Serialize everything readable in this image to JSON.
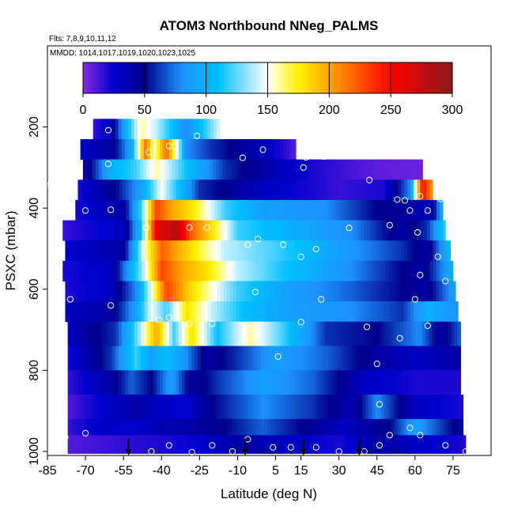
{
  "chart_data": {
    "type": "heatmap",
    "title": "ATOM3 Northbound NNeg_PALMS",
    "flights_note": "Flts: 7,8,9,10,11,12",
    "date_note": "MMDD: 1014,1017,1019,1020,1023,1025",
    "xlabel": "Latitude (deg N)",
    "ylabel": "PSXC (mbar)",
    "xlim": [
      -85,
      90
    ],
    "ylim": [
      1010,
      0
    ],
    "x_ticks": [
      -85,
      -70,
      -55,
      -40,
      -25,
      -10,
      5,
      15,
      30,
      45,
      60,
      75
    ],
    "y_ticks": [
      200,
      400,
      600,
      800,
      1000
    ],
    "colorbar": {
      "range": [
        0,
        300
      ],
      "ticks": [
        0,
        50,
        100,
        150,
        200,
        250,
        300
      ],
      "stops": [
        {
          "v": 0,
          "c": "#8a2be2"
        },
        {
          "v": 25,
          "c": "#0000cd"
        },
        {
          "v": 50,
          "c": "#00008b"
        },
        {
          "v": 80,
          "c": "#1e90ff"
        },
        {
          "v": 110,
          "c": "#00bfff"
        },
        {
          "v": 150,
          "c": "#ffffff"
        },
        {
          "v": 175,
          "c": "#fff200"
        },
        {
          "v": 200,
          "c": "#ffa500"
        },
        {
          "v": 250,
          "c": "#ff0000"
        },
        {
          "v": 300,
          "c": "#8b1a1a"
        }
      ]
    },
    "pressure_bands": [
      {
        "p_top": 180,
        "p_bot": 230,
        "lat_min": -67,
        "lat_max": -16,
        "knots": [
          [
            -67,
            15
          ],
          [
            -60,
            30
          ],
          [
            -55,
            90
          ],
          [
            -48,
            160
          ],
          [
            -42,
            140
          ],
          [
            -30,
            80
          ],
          [
            -16,
            150
          ]
        ]
      },
      {
        "p_top": 230,
        "p_bot": 280,
        "lat_min": -72,
        "lat_max": 13,
        "knots": [
          [
            -72,
            30
          ],
          [
            -60,
            40
          ],
          [
            -52,
            90
          ],
          [
            -46,
            220
          ],
          [
            -43,
            150
          ],
          [
            -38,
            220
          ],
          [
            -30,
            80
          ],
          [
            -20,
            60
          ],
          [
            -5,
            40
          ],
          [
            13,
            10
          ]
        ]
      },
      {
        "p_top": 280,
        "p_bot": 330,
        "lat_min": -71,
        "lat_max": 63,
        "knots": [
          [
            -71,
            30
          ],
          [
            -60,
            100
          ],
          [
            -50,
            120
          ],
          [
            -42,
            160
          ],
          [
            -30,
            110
          ],
          [
            -15,
            60
          ],
          [
            0,
            40
          ],
          [
            20,
            20
          ],
          [
            40,
            10
          ],
          [
            63,
            5
          ]
        ]
      },
      {
        "p_top": 330,
        "p_bot": 380,
        "lat_min": -73,
        "lat_max": 67,
        "knots": [
          [
            -73,
            20
          ],
          [
            -58,
            50
          ],
          [
            -48,
            90
          ],
          [
            -40,
            150
          ],
          [
            -25,
            60
          ],
          [
            0,
            30
          ],
          [
            30,
            15
          ],
          [
            48,
            20
          ],
          [
            58,
            80
          ],
          [
            63,
            250
          ],
          [
            67,
            200
          ]
        ]
      },
      {
        "p_top": 380,
        "p_bot": 430,
        "lat_min": -74,
        "lat_max": 71,
        "knots": [
          [
            -74,
            20
          ],
          [
            -55,
            40
          ],
          [
            -48,
            120
          ],
          [
            -42,
            230
          ],
          [
            -36,
            200
          ],
          [
            -28,
            180
          ],
          [
            -15,
            120
          ],
          [
            0,
            90
          ],
          [
            25,
            80
          ],
          [
            45,
            50
          ],
          [
            60,
            40
          ],
          [
            66,
            30
          ],
          [
            71,
            100
          ]
        ]
      },
      {
        "p_top": 430,
        "p_bot": 480,
        "lat_min": -79,
        "lat_max": 72,
        "knots": [
          [
            -79,
            15
          ],
          [
            -55,
            30
          ],
          [
            -48,
            110
          ],
          [
            -42,
            260
          ],
          [
            -34,
            280
          ],
          [
            -28,
            220
          ],
          [
            -20,
            180
          ],
          [
            -10,
            120
          ],
          [
            10,
            100
          ],
          [
            35,
            80
          ],
          [
            55,
            40
          ],
          [
            65,
            60
          ],
          [
            72,
            120
          ]
        ]
      },
      {
        "p_top": 480,
        "p_bot": 530,
        "lat_min": -78,
        "lat_max": 74,
        "knots": [
          [
            -78,
            25
          ],
          [
            -55,
            40
          ],
          [
            -47,
            150
          ],
          [
            -40,
            220
          ],
          [
            -34,
            200
          ],
          [
            -25,
            170
          ],
          [
            -15,
            140
          ],
          [
            5,
            120
          ],
          [
            30,
            90
          ],
          [
            55,
            60
          ],
          [
            65,
            40
          ],
          [
            74,
            110
          ]
        ]
      },
      {
        "p_top": 530,
        "p_bot": 580,
        "lat_min": -79,
        "lat_max": 75,
        "knots": [
          [
            -79,
            20
          ],
          [
            -60,
            30
          ],
          [
            -47,
            140
          ],
          [
            -40,
            230
          ],
          [
            -32,
            200
          ],
          [
            -22,
            180
          ],
          [
            -10,
            140
          ],
          [
            10,
            110
          ],
          [
            35,
            80
          ],
          [
            55,
            50
          ],
          [
            63,
            40
          ],
          [
            75,
            100
          ]
        ]
      },
      {
        "p_top": 580,
        "p_bot": 630,
        "lat_min": -78,
        "lat_max": 76,
        "knots": [
          [
            -78,
            20
          ],
          [
            -60,
            30
          ],
          [
            -50,
            80
          ],
          [
            -44,
            150
          ],
          [
            -38,
            230
          ],
          [
            -30,
            190
          ],
          [
            -22,
            160
          ],
          [
            -10,
            120
          ],
          [
            10,
            90
          ],
          [
            35,
            70
          ],
          [
            55,
            50
          ],
          [
            64,
            40
          ],
          [
            76,
            90
          ]
        ]
      },
      {
        "p_top": 630,
        "p_bot": 680,
        "lat_min": -78,
        "lat_max": 77,
        "knots": [
          [
            -78,
            30
          ],
          [
            -60,
            40
          ],
          [
            -50,
            90
          ],
          [
            -44,
            150
          ],
          [
            -38,
            120
          ],
          [
            -30,
            180
          ],
          [
            -20,
            140
          ],
          [
            -8,
            110
          ],
          [
            10,
            90
          ],
          [
            35,
            80
          ],
          [
            55,
            60
          ],
          [
            65,
            100
          ],
          [
            77,
            80
          ]
        ]
      },
      {
        "p_top": 680,
        "p_bot": 740,
        "lat_min": -77,
        "lat_max": 78,
        "knots": [
          [
            -77,
            30
          ],
          [
            -58,
            60
          ],
          [
            -48,
            140
          ],
          [
            -42,
            200
          ],
          [
            -35,
            120
          ],
          [
            -28,
            180
          ],
          [
            -18,
            110
          ],
          [
            -5,
            160
          ],
          [
            8,
            120
          ],
          [
            25,
            60
          ],
          [
            45,
            50
          ],
          [
            62,
            80
          ],
          [
            70,
            40
          ],
          [
            78,
            70
          ]
        ]
      },
      {
        "p_top": 740,
        "p_bot": 800,
        "lat_min": -77,
        "lat_max": 78,
        "knots": [
          [
            -77,
            20
          ],
          [
            -60,
            60
          ],
          [
            -50,
            120
          ],
          [
            -44,
            90
          ],
          [
            -38,
            110
          ],
          [
            -30,
            80
          ],
          [
            -22,
            40
          ],
          [
            -10,
            60
          ],
          [
            5,
            90
          ],
          [
            25,
            70
          ],
          [
            45,
            40
          ],
          [
            62,
            30
          ],
          [
            78,
            40
          ]
        ]
      },
      {
        "p_top": 800,
        "p_bot": 860,
        "lat_min": -77,
        "lat_max": 78,
        "knots": [
          [
            -77,
            15
          ],
          [
            -60,
            40
          ],
          [
            -52,
            70
          ],
          [
            -44,
            50
          ],
          [
            -36,
            90
          ],
          [
            -28,
            40
          ],
          [
            -18,
            60
          ],
          [
            0,
            90
          ],
          [
            20,
            70
          ],
          [
            40,
            30
          ],
          [
            60,
            20
          ],
          [
            78,
            20
          ]
        ]
      },
      {
        "p_top": 860,
        "p_bot": 920,
        "lat_min": -77,
        "lat_max": 79,
        "knots": [
          [
            -77,
            10
          ],
          [
            -60,
            30
          ],
          [
            -50,
            40
          ],
          [
            -40,
            30
          ],
          [
            -30,
            25
          ],
          [
            -20,
            50
          ],
          [
            0,
            80
          ],
          [
            20,
            60
          ],
          [
            35,
            35
          ],
          [
            45,
            80
          ],
          [
            60,
            30
          ],
          [
            79,
            20
          ]
        ]
      },
      {
        "p_top": 920,
        "p_bot": 960,
        "lat_min": -77,
        "lat_max": 79,
        "knots": [
          [
            -77,
            15
          ],
          [
            -62,
            30
          ],
          [
            -52,
            25
          ],
          [
            -40,
            35
          ],
          [
            -28,
            40
          ],
          [
            -15,
            50
          ],
          [
            0,
            70
          ],
          [
            15,
            50
          ],
          [
            32,
            30
          ],
          [
            50,
            50
          ],
          [
            60,
            90
          ],
          [
            79,
            40
          ]
        ]
      },
      {
        "p_top": 960,
        "p_bot": 1005,
        "lat_min": -77,
        "lat_max": 80,
        "knots": [
          [
            -77,
            10
          ],
          [
            -60,
            15
          ],
          [
            -40,
            20
          ],
          [
            -25,
            25
          ],
          [
            -10,
            40
          ],
          [
            10,
            30
          ],
          [
            30,
            20
          ],
          [
            45,
            40
          ],
          [
            60,
            30
          ],
          [
            80,
            20
          ]
        ]
      }
    ],
    "sample_points": [
      {
        "lat": -61,
        "p": 208
      },
      {
        "lat": -45,
        "p": 262
      },
      {
        "lat": -37,
        "p": 247
      },
      {
        "lat": -26,
        "p": 222
      },
      {
        "lat": -17,
        "p": 222
      },
      {
        "lat": -8,
        "p": 276
      },
      {
        "lat": 0,
        "p": 256
      },
      {
        "lat": 17,
        "p": 275
      },
      {
        "lat": 24,
        "p": 273
      },
      {
        "lat": 16,
        "p": 300
      },
      {
        "lat": -61,
        "p": 291
      },
      {
        "lat": -77,
        "p": 291
      },
      {
        "lat": -84,
        "p": 342
      },
      {
        "lat": 42,
        "p": 331
      },
      {
        "lat": 53,
        "p": 379
      },
      {
        "lat": 56,
        "p": 381
      },
      {
        "lat": 62,
        "p": 371
      },
      {
        "lat": 70,
        "p": 377
      },
      {
        "lat": 65,
        "p": 406
      },
      {
        "lat": 58,
        "p": 406
      },
      {
        "lat": 50,
        "p": 442
      },
      {
        "lat": 34,
        "p": 449
      },
      {
        "lat": -70,
        "p": 406
      },
      {
        "lat": -60,
        "p": 404
      },
      {
        "lat": -46,
        "p": 448
      },
      {
        "lat": -29,
        "p": 448
      },
      {
        "lat": -22,
        "p": 448
      },
      {
        "lat": -15,
        "p": 451
      },
      {
        "lat": -2,
        "p": 476
      },
      {
        "lat": 8,
        "p": 490
      },
      {
        "lat": 21,
        "p": 501
      },
      {
        "lat": -6,
        "p": 490
      },
      {
        "lat": 15,
        "p": 520
      },
      {
        "lat": 61,
        "p": 460
      },
      {
        "lat": 69,
        "p": 520
      },
      {
        "lat": 62,
        "p": 565
      },
      {
        "lat": 72,
        "p": 580
      },
      {
        "lat": -76,
        "p": 625
      },
      {
        "lat": -60,
        "p": 640
      },
      {
        "lat": -3,
        "p": 607
      },
      {
        "lat": 23,
        "p": 625
      },
      {
        "lat": -41,
        "p": 676
      },
      {
        "lat": -37,
        "p": 670
      },
      {
        "lat": -29,
        "p": 685
      },
      {
        "lat": -20,
        "p": 685
      },
      {
        "lat": -5,
        "p": 697
      },
      {
        "lat": 15,
        "p": 681
      },
      {
        "lat": 41,
        "p": 693
      },
      {
        "lat": 60,
        "p": 625
      },
      {
        "lat": 65,
        "p": 690
      },
      {
        "lat": 54,
        "p": 721
      },
      {
        "lat": 6,
        "p": 766
      },
      {
        "lat": 45,
        "p": 784
      },
      {
        "lat": 46,
        "p": 884
      },
      {
        "lat": 58,
        "p": 942
      },
      {
        "lat": -78,
        "p": 965
      },
      {
        "lat": -70,
        "p": 955
      },
      {
        "lat": -37,
        "p": 985
      },
      {
        "lat": -28,
        "p": 1002
      },
      {
        "lat": -20,
        "p": 985
      },
      {
        "lat": -12,
        "p": 1000
      },
      {
        "lat": -6,
        "p": 970
      },
      {
        "lat": 4,
        "p": 990
      },
      {
        "lat": 11,
        "p": 990
      },
      {
        "lat": 21,
        "p": 990
      },
      {
        "lat": 30,
        "p": 1000
      },
      {
        "lat": 40,
        "p": 1000
      },
      {
        "lat": 46,
        "p": 985
      },
      {
        "lat": 50,
        "p": 960
      },
      {
        "lat": 62,
        "p": 960
      },
      {
        "lat": 72,
        "p": 985
      },
      {
        "lat": 80,
        "p": 1000
      },
      {
        "lat": -44,
        "p": 1000
      }
    ],
    "arrow_markers_lat": [
      -53,
      -7,
      16,
      38
    ]
  }
}
